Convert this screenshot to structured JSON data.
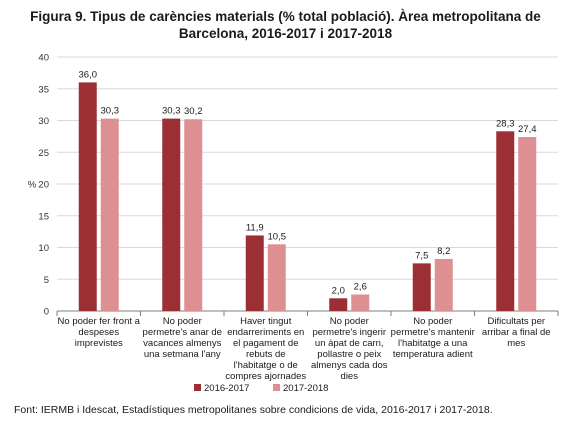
{
  "chart_data": {
    "type": "bar",
    "title_lines": [
      "Figura 9. Tipus de carències materials (% total població). Àrea metropolitana de",
      "Barcelona, 2016-2017 i 2017-2018"
    ],
    "ylabel": "%",
    "ylim": [
      0,
      40
    ],
    "yticks": [
      0,
      5,
      10,
      15,
      20,
      25,
      30,
      35,
      40
    ],
    "grid": true,
    "legend_position": "bottom",
    "categories": [
      [
        "No poder fer front a",
        "despeses",
        "imprevistes"
      ],
      [
        "No poder",
        "permetre's anar de",
        "vacances almenys",
        "una setmana l'any"
      ],
      [
        "Haver tingut",
        "endarreriments en",
        "el pagament de",
        "rebuts de",
        "l'habitatge o de",
        "compres ajornades"
      ],
      [
        "No poder",
        "permetre's ingerir",
        "un àpat de carn,",
        "pollastre o peix",
        "almenys cada dos",
        "dies"
      ],
      [
        "No poder",
        "permetre's mantenir",
        "l'habitatge a una",
        "temperatura adient"
      ],
      [
        "Dificultats per",
        "arribar a final de",
        "mes"
      ]
    ],
    "series": [
      {
        "name": "2016-2017",
        "color": "#9b2f33",
        "values": [
          36.0,
          30.3,
          11.9,
          2.0,
          7.5,
          28.3
        ],
        "labels": [
          "36,0",
          "30,3",
          "11,9",
          "2,0",
          "7,5",
          "28,3"
        ]
      },
      {
        "name": "2017-2018",
        "color": "#de8f92",
        "values": [
          30.3,
          30.2,
          10.5,
          2.6,
          8.2,
          27.4
        ],
        "labels": [
          "30,3",
          "30,2",
          "10,5",
          "2,6",
          "8,2",
          "27,4"
        ]
      }
    ]
  },
  "source": "Font: IERMB i Idescat, Estadístiques metropolitanes sobre condicions de vida, 2016-2017 i 2017-2018."
}
